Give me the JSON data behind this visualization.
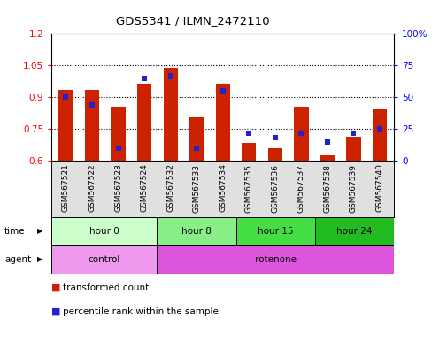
{
  "title": "GDS5341 / ILMN_2472110",
  "samples": [
    "GSM567521",
    "GSM567522",
    "GSM567523",
    "GSM567524",
    "GSM567532",
    "GSM567533",
    "GSM567534",
    "GSM567535",
    "GSM567536",
    "GSM567537",
    "GSM567538",
    "GSM567539",
    "GSM567540"
  ],
  "transformed_count": [
    0.935,
    0.935,
    0.855,
    0.965,
    1.04,
    0.81,
    0.965,
    0.685,
    0.66,
    0.855,
    0.625,
    0.715,
    0.845
  ],
  "percentile_rank": [
    50,
    44,
    10,
    65,
    67,
    10,
    55,
    22,
    18,
    22,
    15,
    22,
    25
  ],
  "ylim_left": [
    0.6,
    1.2
  ],
  "ylim_right": [
    0,
    100
  ],
  "yticks_left": [
    0.6,
    0.75,
    0.9,
    1.05,
    1.2
  ],
  "yticks_right": [
    0,
    25,
    50,
    75,
    100
  ],
  "bar_color": "#cc2200",
  "dot_color": "#2222cc",
  "background_color": "#ffffff",
  "time_groups": [
    {
      "label": "hour 0",
      "start": 0,
      "end": 4,
      "color": "#ccffcc"
    },
    {
      "label": "hour 8",
      "start": 4,
      "end": 7,
      "color": "#88ee88"
    },
    {
      "label": "hour 15",
      "start": 7,
      "end": 10,
      "color": "#44dd44"
    },
    {
      "label": "hour 24",
      "start": 10,
      "end": 13,
      "color": "#22bb22"
    }
  ],
  "agent_groups": [
    {
      "label": "control",
      "start": 0,
      "end": 4,
      "color": "#ee99ee"
    },
    {
      "label": "rotenone",
      "start": 4,
      "end": 13,
      "color": "#dd55dd"
    }
  ],
  "legend_items": [
    {
      "label": "transformed count",
      "color": "#cc2200"
    },
    {
      "label": "percentile rank within the sample",
      "color": "#2222cc"
    }
  ]
}
